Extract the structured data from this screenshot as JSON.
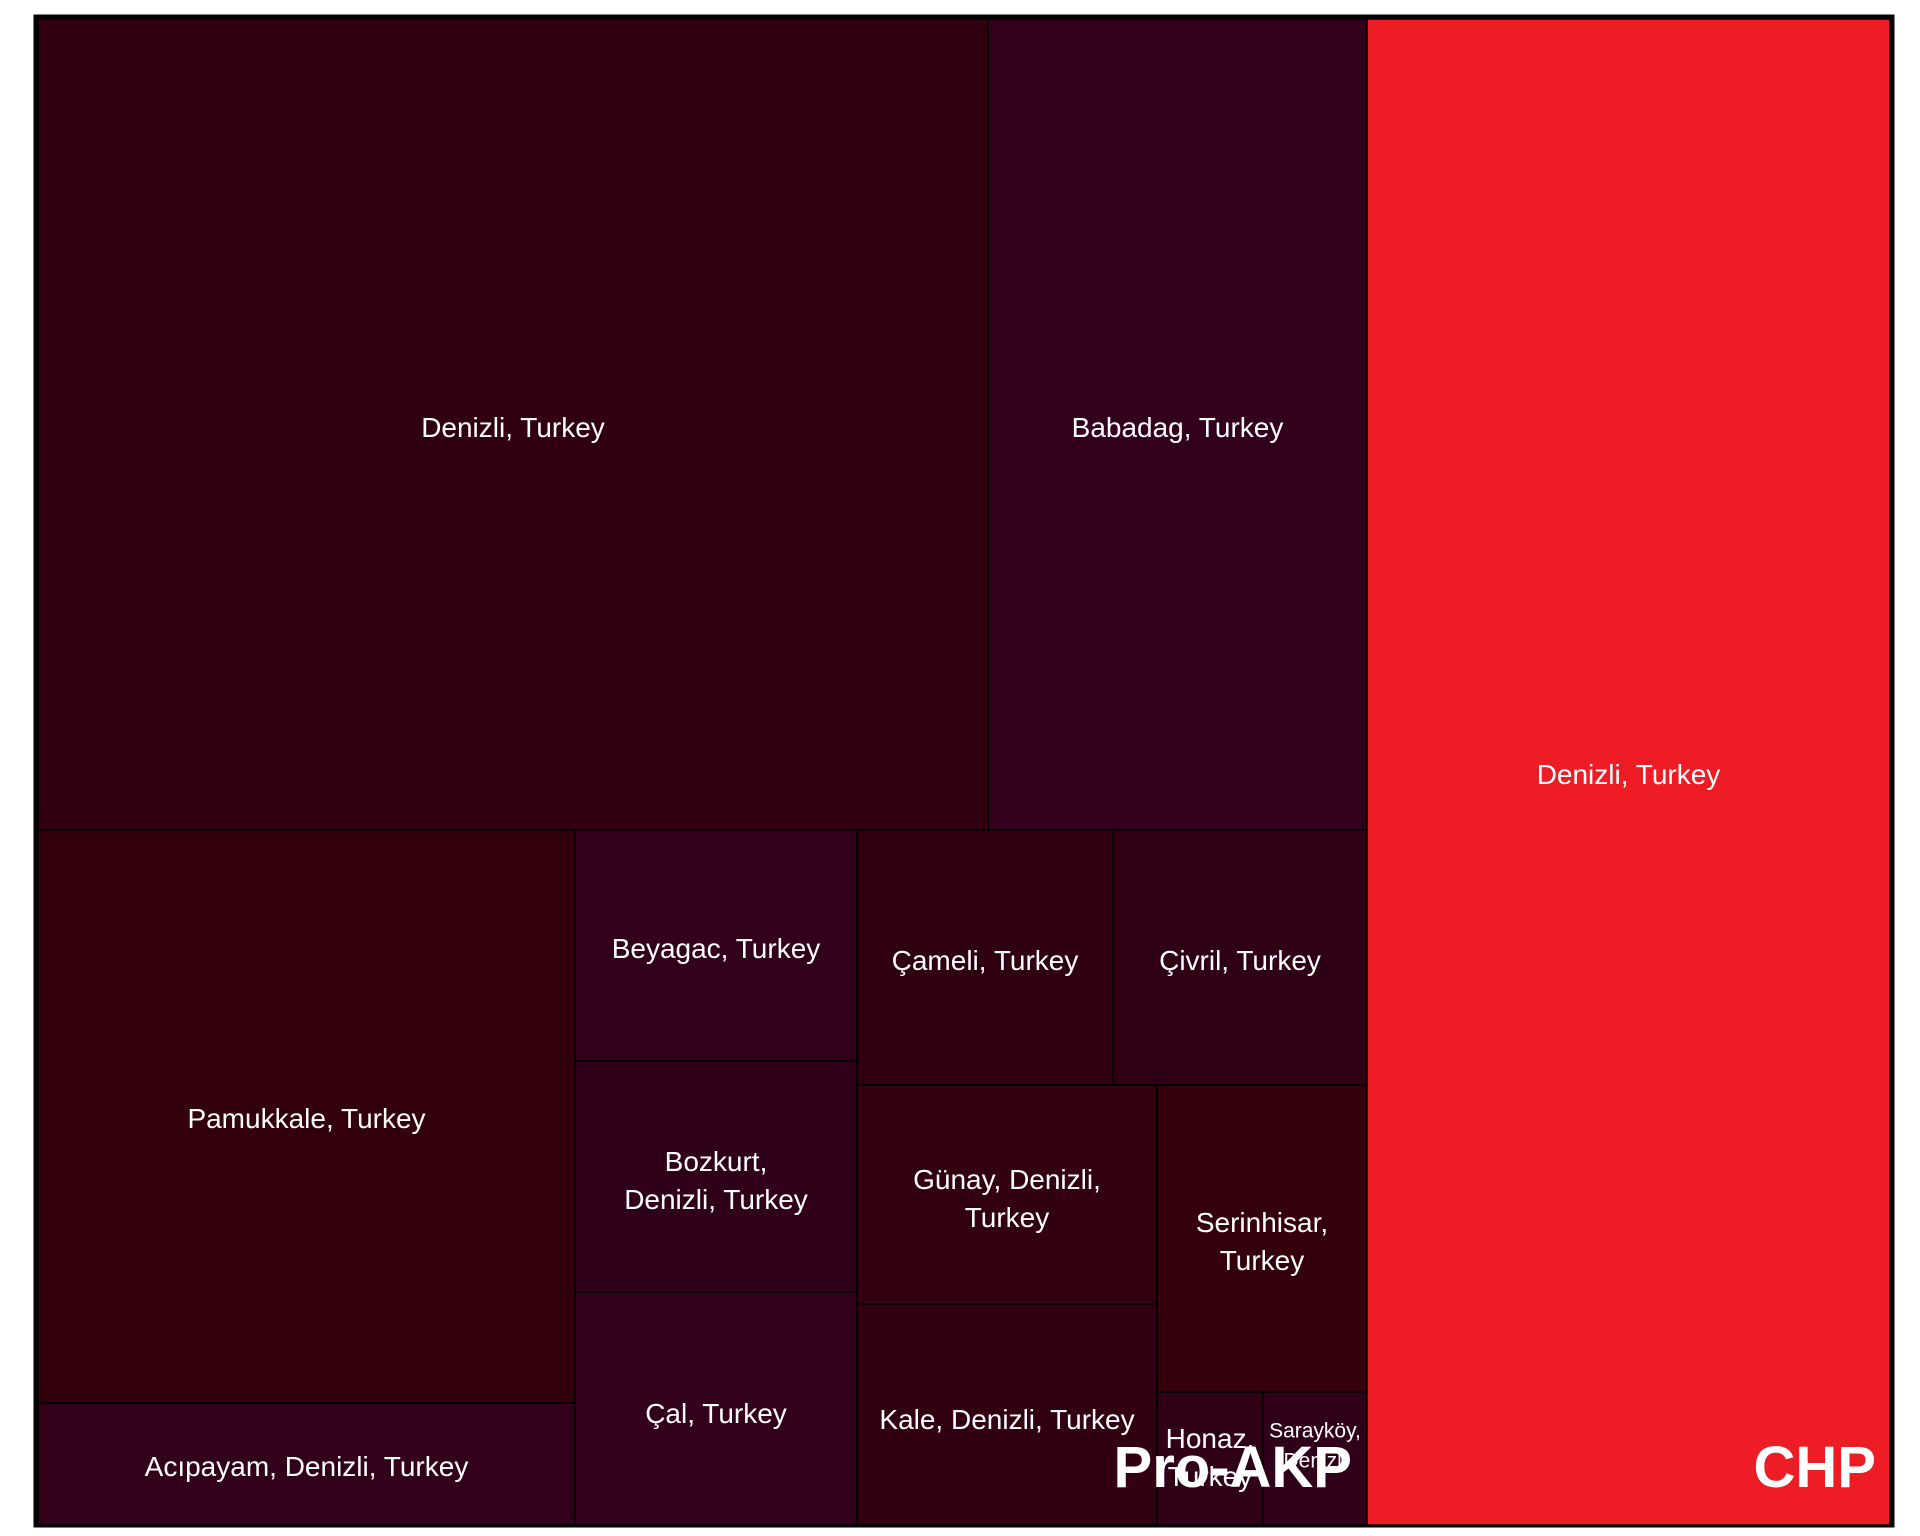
{
  "chart_data": {
    "type": "treemap",
    "groups": [
      {
        "name": "Pro-AKP",
        "items": [
          {
            "label": "Denizli, Turkey",
            "color": "#300010"
          },
          {
            "label": "Babadag, Turkey",
            "color": "#32001C"
          },
          {
            "label": "Pamukkale, Turkey",
            "color": "#33000D"
          },
          {
            "label": "Acıpayam, Denizli, Turkey",
            "color": "#330019"
          },
          {
            "label": "Beyagac, Turkey",
            "color": "#32001B"
          },
          {
            "label": "Bozkurt, Denizli, Turkey",
            "color": "#30001A"
          },
          {
            "label": "Çal, Turkey",
            "color": "#32001A"
          },
          {
            "label": "Çameli, Turkey",
            "color": "#2F0012"
          },
          {
            "label": "Çivril, Turkey",
            "color": "#2F0014"
          },
          {
            "label": "Günay, Denizli, Turkey",
            "color": "#330012"
          },
          {
            "label": "Serinhisar, Turkey",
            "color": "#34000C"
          },
          {
            "label": "Kale, Denizli, Turkey",
            "color": "#310013"
          },
          {
            "label": "Honaz, Turkey",
            "color": "#300017"
          },
          {
            "label": "Sarayköy, Denizli, Turkey",
            "color": "#30001A"
          }
        ]
      },
      {
        "name": "CHP",
        "items": [
          {
            "label": "Denizli, Turkey",
            "color": "#EE1C25"
          }
        ]
      }
    ]
  }
}
